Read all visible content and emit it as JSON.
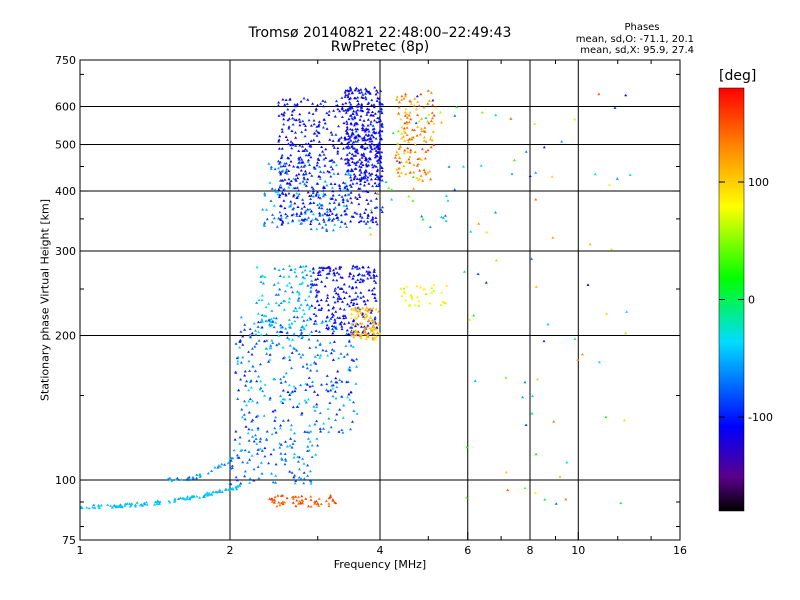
{
  "chart_data": {
    "type": "scatter",
    "title": "Tromsø 20140821 22:48:00–22:49:43",
    "subtitle": "RwPretec (8p)",
    "xlabel": "Frequency [MHz]",
    "ylabel": "Stationary phase Virtual Height [km]",
    "x_scale": "log",
    "y_scale": "log",
    "xlim": [
      1,
      16
    ],
    "ylim": [
      75,
      750
    ],
    "x_ticks": [
      1,
      2,
      4,
      6,
      8,
      10,
      16
    ],
    "x_tick_labels": [
      "1",
      "2",
      "4",
      "6",
      "8",
      "10",
      "16"
    ],
    "x_grid": [
      2,
      4,
      6,
      8,
      10
    ],
    "y_ticks": [
      75,
      100,
      200,
      300,
      400,
      500,
      600,
      750
    ],
    "y_tick_labels": [
      "75",
      "100",
      "200",
      "300",
      "400",
      "500",
      "600",
      "750"
    ],
    "y_grid": [
      100,
      200,
      300,
      400,
      500,
      600
    ],
    "grid": true,
    "colorbar": {
      "label": "[deg]",
      "range": [
        -180,
        180
      ],
      "ticks": [
        100,
        0,
        -100
      ],
      "tick_labels": [
        "100",
        "0",
        "-100"
      ]
    },
    "phase_info": {
      "header": "Phases",
      "o_line": "mean, sd,O: -71.1, 20.1",
      "x_line": "mean, sd,X:  95.9, 27.4"
    },
    "clusters": [
      {
        "x": [
          1.0,
          2.1
        ],
        "y": [
          88,
          97
        ],
        "phase": [
          -55,
          -35
        ],
        "n": 130,
        "shape": "curve"
      },
      {
        "x": [
          1.5,
          2.05
        ],
        "y": [
          100,
          112
        ],
        "phase": [
          -80,
          -35
        ],
        "n": 35,
        "shape": "curve"
      },
      {
        "x": [
          2.0,
          3.0
        ],
        "y": [
          98,
          125
        ],
        "phase": [
          -100,
          -40
        ],
        "n": 110
      },
      {
        "x": [
          2.05,
          3.6
        ],
        "y": [
          125,
          220
        ],
        "phase": [
          -110,
          -30
        ],
        "n": 320
      },
      {
        "x": [
          2.25,
          3.0
        ],
        "y": [
          195,
          280
        ],
        "phase": [
          -80,
          -20
        ],
        "n": 130
      },
      {
        "x": [
          2.9,
          3.95
        ],
        "y": [
          200,
          280
        ],
        "phase": [
          -125,
          -90
        ],
        "n": 240
      },
      {
        "x": [
          3.5,
          4.0
        ],
        "y": [
          195,
          230
        ],
        "phase": [
          85,
          130
        ],
        "n": 95
      },
      {
        "x": [
          2.4,
          3.3
        ],
        "y": [
          88,
          93
        ],
        "phase": [
          130,
          165
        ],
        "n": 60
      },
      {
        "x": [
          2.3,
          3.5
        ],
        "y": [
          330,
          460
        ],
        "phase": [
          -85,
          -40
        ],
        "n": 140
      },
      {
        "x": [
          2.5,
          4.05
        ],
        "y": [
          340,
          630
        ],
        "phase": [
          -130,
          -85
        ],
        "n": 560
      },
      {
        "x": [
          3.4,
          4.05
        ],
        "y": [
          420,
          660
        ],
        "phase": [
          -125,
          -95
        ],
        "n": 260
      },
      {
        "x": [
          4.3,
          5.15
        ],
        "y": [
          420,
          650
        ],
        "phase": [
          95,
          160
        ],
        "n": 140
      },
      {
        "x": [
          4.4,
          5.5
        ],
        "y": [
          230,
          255
        ],
        "phase": [
          55,
          95
        ],
        "n": 35
      },
      {
        "x": [
          3.8,
          6.4
        ],
        "y": [
          320,
          640
        ],
        "phase": [
          -110,
          160
        ],
        "n": 40
      },
      {
        "x": [
          5.8,
          12.8
        ],
        "y": [
          85,
          680
        ],
        "phase": [
          -130,
          150
        ],
        "n": 70
      }
    ]
  }
}
